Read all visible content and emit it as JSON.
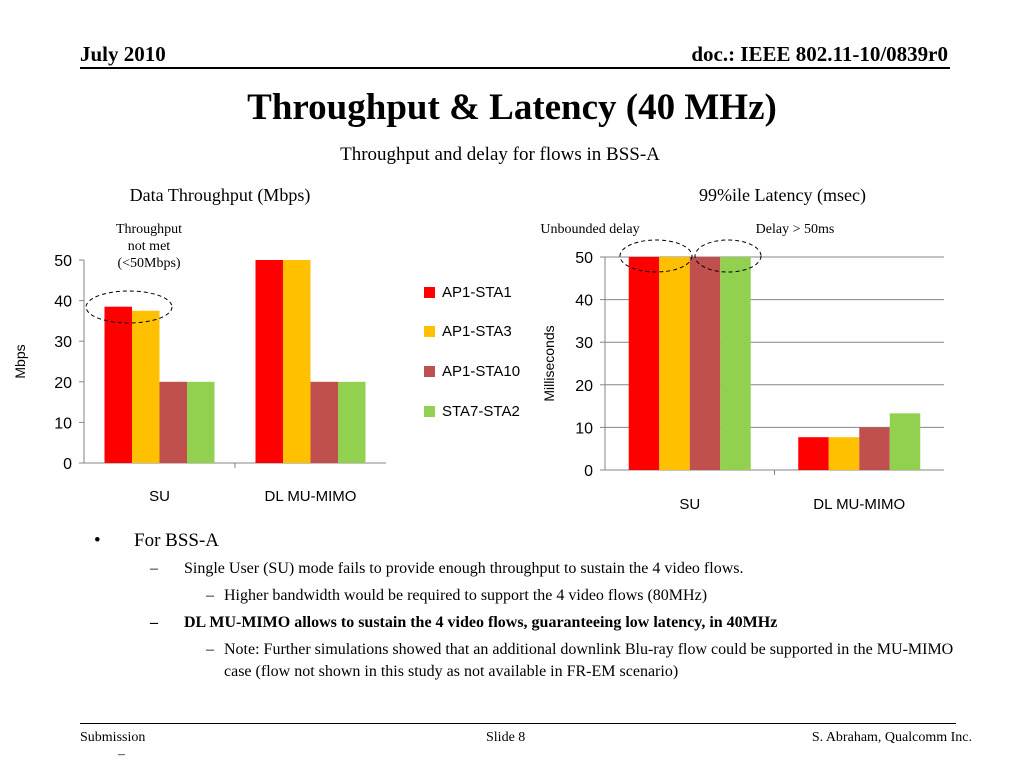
{
  "header": {
    "date": "July 2010",
    "doc_id": "doc.: IEEE 802.11-10/0839r0"
  },
  "slide": {
    "title": "Throughput & Latency (40 MHz)",
    "subtitle": "Throughput and delay for flows in BSS-A"
  },
  "chart_data": [
    {
      "type": "bar",
      "title": "Data Throughput (Mbps)",
      "ylabel": "Mbps",
      "categories": [
        "SU",
        "DL MU-MIMO"
      ],
      "ylim": [
        0,
        50
      ],
      "yticks": [
        0,
        10,
        20,
        30,
        40,
        50
      ],
      "series": [
        {
          "name": "AP1-STA1",
          "values": [
            38.5,
            50
          ],
          "color": "#ff0000"
        },
        {
          "name": "AP1-STA3",
          "values": [
            37.5,
            50
          ],
          "color": "#ffc000"
        },
        {
          "name": "AP1-STA10",
          "values": [
            20,
            20
          ],
          "color": "#c0504d"
        },
        {
          "name": "STA7-STA2",
          "values": [
            20,
            20
          ],
          "color": "#92d050"
        }
      ],
      "annotation": "Throughput not met (<50Mbps)",
      "gridlines": false,
      "legend": "right"
    },
    {
      "type": "bar",
      "title": "99%ile Latency (msec)",
      "ylabel": "Milliseconds",
      "categories": [
        "SU",
        "DL MU-MIMO"
      ],
      "ylim": [
        0,
        50
      ],
      "yticks": [
        0,
        10,
        20,
        30,
        40,
        50
      ],
      "series": [
        {
          "name": "AP1-STA1",
          "values": [
            50,
            7.7
          ],
          "color": "#ff0000"
        },
        {
          "name": "AP1-STA3",
          "values": [
            50,
            7.7
          ],
          "color": "#ffc000"
        },
        {
          "name": "AP1-STA10",
          "values": [
            50,
            10
          ],
          "color": "#c0504d"
        },
        {
          "name": "STA7-STA2",
          "values": [
            50,
            13.3
          ],
          "color": "#92d050"
        }
      ],
      "annotations": [
        "Unbounded delay",
        "Delay > 50ms"
      ],
      "gridlines": true,
      "legend": "none"
    }
  ],
  "annotations": {
    "throughput_line1": "Throughput",
    "throughput_line2": "not met",
    "throughput_line3": "(<50Mbps)",
    "unbounded": "Unbounded delay",
    "delay50": "Delay > 50ms"
  },
  "bullets": {
    "b1": {
      "marker": "•",
      "text": "For BSS-A"
    },
    "b2a": {
      "marker": "–",
      "text": "Single User (SU) mode fails to provide enough throughput to sustain the 4 video flows."
    },
    "b3a": {
      "marker": "–",
      "text": "Higher bandwidth would be required to support the 4 video flows (80MHz)"
    },
    "b2b": {
      "marker": "–",
      "text": "DL MU-MIMO allows to sustain the 4 video flows, guaranteeing low latency, in 40MHz"
    },
    "b3b": {
      "marker": "–",
      "text": "Note: Further simulations showed that an additional downlink Blu-ray flow could be supported in the MU-MIMO case (flow not shown in this study as not available in FR-EM scenario)"
    }
  },
  "footer": {
    "left": "Submission",
    "left_mark": "–",
    "center": "Slide 8",
    "right": "S. Abraham, Qualcomm Inc."
  }
}
